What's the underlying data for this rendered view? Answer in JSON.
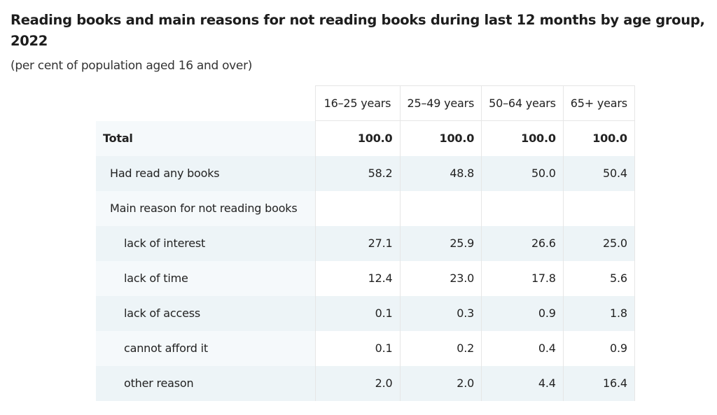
{
  "title": "Reading books and main reasons for not reading books during last 12 months by age group, 2022",
  "subtitle": "(per cent of population aged 16 and over)",
  "columns": [
    "16–25 years",
    "25–49 years",
    "50–64 years",
    "65+ years"
  ],
  "rows": [
    {
      "label": "Total",
      "values": [
        "100.0",
        "100.0",
        "100.0",
        "100.0"
      ]
    },
    {
      "label": "Had read any books",
      "values": [
        "58.2",
        "48.8",
        "50.0",
        "50.4"
      ]
    },
    {
      "label": "Main reason for not reading books",
      "values": [
        "",
        "",
        "",
        ""
      ]
    },
    {
      "label": "lack of interest",
      "values": [
        "27.1",
        "25.9",
        "26.6",
        "25.0"
      ]
    },
    {
      "label": "lack of time",
      "values": [
        "12.4",
        "23.0",
        "17.8",
        "5.6"
      ]
    },
    {
      "label": "lack of access",
      "values": [
        "0.1",
        "0.3",
        "0.9",
        "1.8"
      ]
    },
    {
      "label": "cannot afford it",
      "values": [
        "0.1",
        "0.2",
        "0.4",
        "0.9"
      ]
    },
    {
      "label": "other reason",
      "values": [
        "2.0",
        "2.0",
        "4.4",
        "16.4"
      ]
    }
  ]
}
